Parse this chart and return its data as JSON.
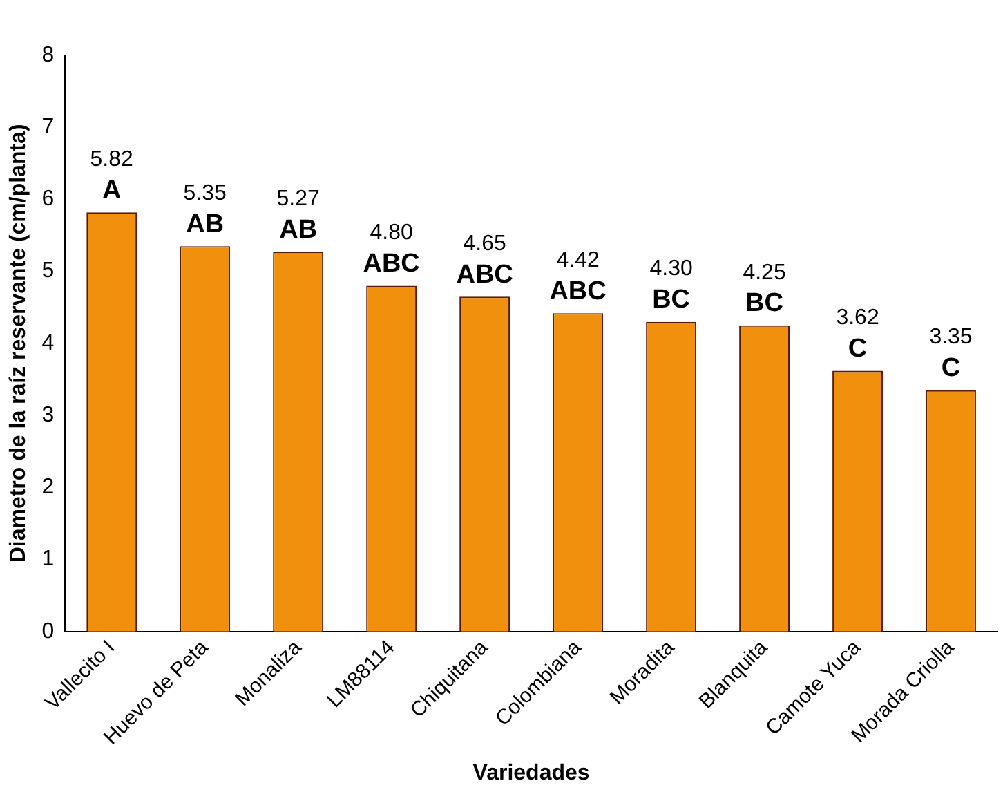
{
  "chart_data": {
    "type": "bar",
    "xlabel": "Variedades",
    "ylabel": "Diametro de la raíz reservante (cm/planta)",
    "categories": [
      "Vallecito I",
      "Huevo de Peta",
      "Monaliza",
      "LM88114",
      "Chiquitana",
      "Colombiana",
      "Moradita",
      "Blanquita",
      "Camote Yuca",
      "Morada Criolla"
    ],
    "values": [
      5.82,
      5.35,
      5.27,
      4.8,
      4.65,
      4.42,
      4.3,
      4.25,
      3.62,
      3.35
    ],
    "value_labels": [
      "5.82",
      "5.35",
      "5.27",
      "4.80",
      "4.65",
      "4.42",
      "4.30",
      "4.25",
      "3.62",
      "3.35"
    ],
    "color": "#f0900c",
    "ylim": [
      0,
      8
    ],
    "yticks": [
      0,
      1,
      2,
      3,
      4,
      5,
      6,
      7,
      8
    ],
    "grid": false,
    "legend": false,
    "annotations": [
      {
        "text": "A",
        "x": "Vallecito I",
        "y": 5.82
      },
      {
        "text": "AB",
        "x": "Huevo de Peta",
        "y": 5.35
      },
      {
        "text": "AB",
        "x": "Monaliza",
        "y": 5.27
      },
      {
        "text": "ABC",
        "x": "LM88114",
        "y": 4.8
      },
      {
        "text": "ABC",
        "x": "Chiquitana",
        "y": 4.65
      },
      {
        "text": "ABC",
        "x": "Colombiana",
        "y": 4.42
      },
      {
        "text": "BC",
        "x": "Moradita",
        "y": 4.3
      },
      {
        "text": "BC",
        "x": "Blanquita",
        "y": 4.25
      },
      {
        "text": "C",
        "x": "Camote Yuca",
        "y": 3.62
      },
      {
        "text": "C",
        "x": "Morada Criolla",
        "y": 3.35
      }
    ]
  }
}
